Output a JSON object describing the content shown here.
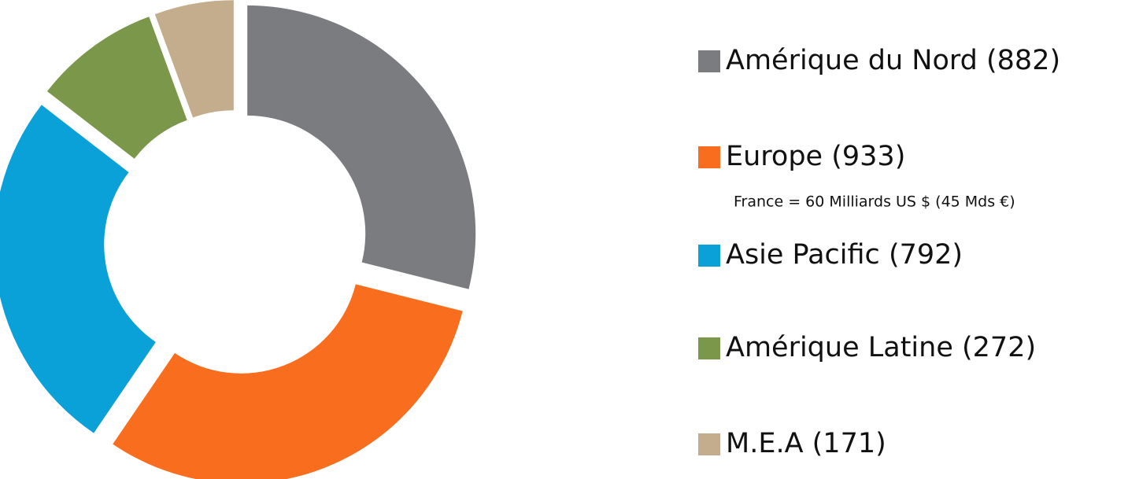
{
  "chart_data": {
    "type": "donut",
    "categories": [
      "Amérique du Nord",
      "Europe",
      "Asie Pacific",
      "Amérique Latine",
      "M.E.A"
    ],
    "values": [
      882,
      933,
      792,
      272,
      171
    ],
    "value_labels": [
      "(882)",
      "(933)",
      "(792)",
      "(272)",
      "(171)"
    ],
    "colors": [
      "#7b7c80",
      "#f96d1e",
      "#0aa0d8",
      "#7a974a",
      "#c4ad8c"
    ],
    "annotation": "France = 60 Milliards US $ (45 Mds €)"
  }
}
